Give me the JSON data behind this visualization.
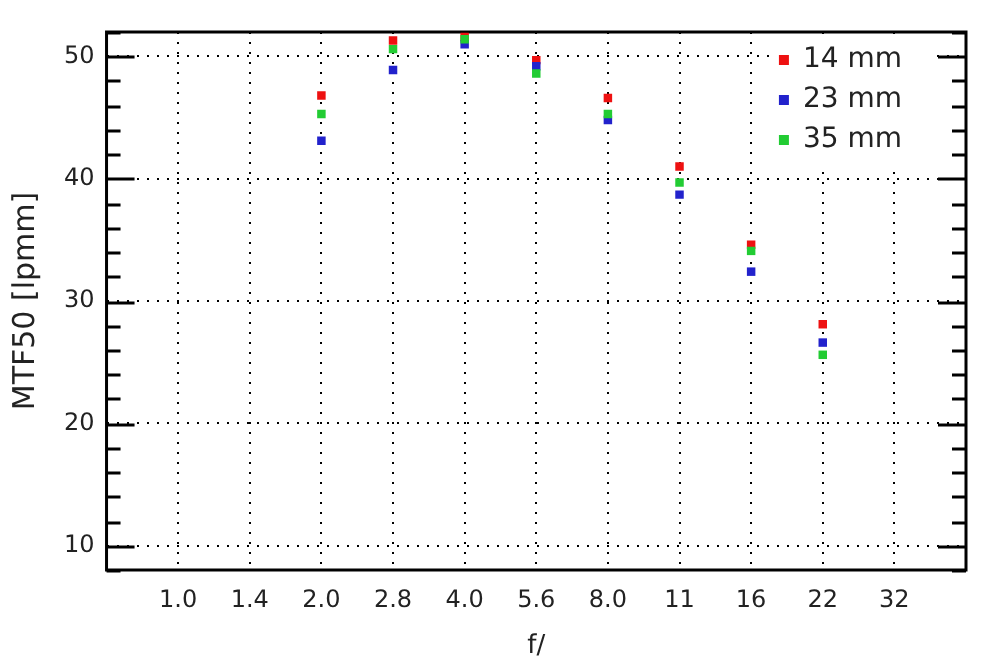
{
  "chart_data": {
    "type": "scatter",
    "xlabel": "f/",
    "ylabel": "MTF50 [lpmm]",
    "categories": [
      null,
      "1.0",
      "1.4",
      "2.0",
      "2.8",
      "4.0",
      "5.6",
      "8.0",
      "11",
      "16",
      "22",
      "32",
      null
    ],
    "series": [
      {
        "name": "14 mm",
        "color": "#ee1111",
        "values": [
          null,
          null,
          null,
          46.8,
          51.3,
          51.6,
          49.7,
          46.6,
          41.0,
          34.6,
          28.1,
          null,
          null
        ]
      },
      {
        "name": "23 mm",
        "color": "#2222cc",
        "values": [
          null,
          null,
          null,
          43.1,
          48.9,
          51.0,
          49.2,
          44.8,
          38.7,
          32.4,
          26.6,
          null,
          null
        ]
      },
      {
        "name": "35 mm",
        "color": "#22cc33",
        "values": [
          null,
          null,
          null,
          45.3,
          50.6,
          51.4,
          48.6,
          45.3,
          39.7,
          34.1,
          25.6,
          null,
          null
        ]
      }
    ],
    "ylim": [
      8,
      52
    ],
    "yticks": [
      {
        "value": 8,
        "label": null
      },
      10,
      {
        "value": 12,
        "label": null
      },
      {
        "value": 14,
        "label": null
      },
      {
        "value": 16,
        "label": null
      },
      {
        "value": 18,
        "label": null
      },
      20,
      {
        "value": 22,
        "label": null
      },
      {
        "value": 24,
        "label": null
      },
      {
        "value": 26,
        "label": null
      },
      {
        "value": 28,
        "label": null
      },
      30,
      {
        "value": 32,
        "label": null
      },
      {
        "value": 34,
        "label": null
      },
      {
        "value": 36,
        "label": null
      },
      {
        "value": 38,
        "label": null
      },
      40,
      {
        "value": 42,
        "label": null
      },
      {
        "value": 44,
        "label": null
      },
      {
        "value": 46,
        "label": null
      },
      {
        "value": 48,
        "label": null
      },
      50,
      {
        "value": 52,
        "label": null
      }
    ],
    "grid": true,
    "legend": "top right",
    "marker": "square"
  }
}
